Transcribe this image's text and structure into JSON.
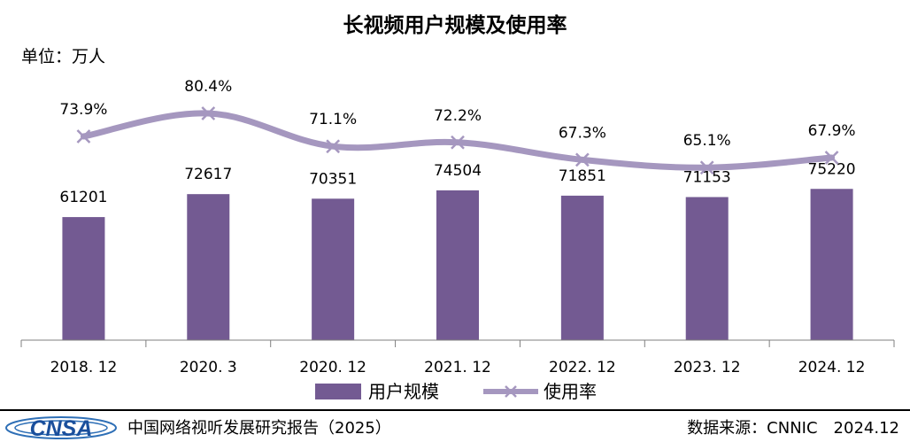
{
  "chart_data": {
    "type": "bar",
    "title": "长视频用户规模及使用率",
    "unit_label": "单位：万人",
    "categories": [
      "2018. 12",
      "2020. 3",
      "2020. 12",
      "2021. 12",
      "2022. 12",
      "2023. 12",
      "2024. 12"
    ],
    "series": [
      {
        "name": "用户规模",
        "type": "bar",
        "values": [
          61201,
          72617,
          70351,
          74504,
          71851,
          71153,
          75220
        ],
        "labels": [
          "61201",
          "72617",
          "70351",
          "74504",
          "71851",
          "71153",
          "75220"
        ]
      },
      {
        "name": "使用率",
        "type": "line",
        "values": [
          73.9,
          80.4,
          71.1,
          72.2,
          67.3,
          65.1,
          67.9
        ],
        "labels": [
          "73.9%",
          "80.4%",
          "71.1%",
          "72.2%",
          "67.3%",
          "65.1%",
          "67.9%"
        ]
      }
    ],
    "legend": "bottom",
    "grid": false,
    "colors": {
      "bar": "#735a92",
      "line": "#a597bf"
    }
  },
  "footer": {
    "logo_text": "CNSA",
    "report": "中国网络视听发展研究报告（2025）",
    "source": "数据来源：CNNIC　2024.12"
  }
}
